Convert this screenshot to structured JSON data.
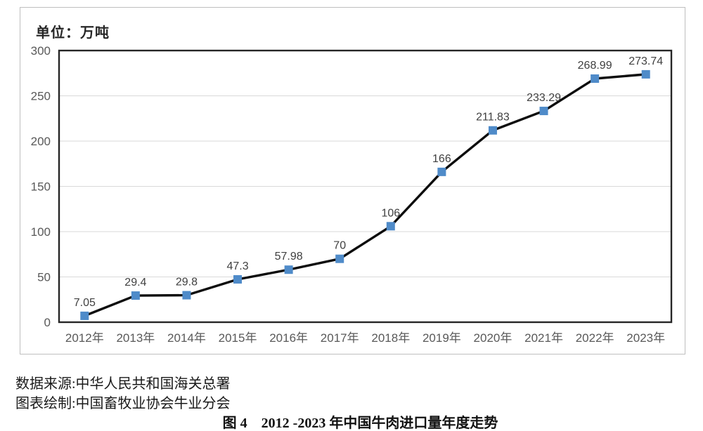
{
  "chart": {
    "unit_label": "单位：万吨",
    "colors": {
      "line": "#0d0d0d",
      "marker": "#4f8bc9",
      "grid": "#d9d9d9",
      "plot_border": "#262626",
      "tick_text": "#595959",
      "value_text": "#404040",
      "frame_border": "#bfbfbf",
      "background": "#ffffff"
    }
  },
  "chart_data": {
    "type": "line",
    "title": "图 4　2012 -2023 年中国牛肉进口量年度走势",
    "unit": "万吨",
    "categories": [
      "2012年",
      "2013年",
      "2014年",
      "2015年",
      "2016年",
      "2017年",
      "2018年",
      "2019年",
      "2020年",
      "2021年",
      "2022年",
      "2023年"
    ],
    "values": [
      7.05,
      29.4,
      29.8,
      47.3,
      57.98,
      70,
      106,
      166,
      211.83,
      233.29,
      268.99,
      273.74
    ],
    "point_labels": [
      "7.05",
      "29.4",
      "29.8",
      "47.3",
      "57.98",
      "70",
      "106",
      "166",
      "211.83",
      "233.29",
      "268.99",
      "273.74"
    ],
    "ylim": [
      0,
      300
    ],
    "yticks": [
      0,
      50,
      100,
      150,
      200,
      250,
      300
    ],
    "grid": true,
    "legend": false,
    "marker_shape": "square"
  },
  "footer": {
    "source_line": "数据来源:中华人民共和国海关总署",
    "credit_line": "图表绘制:中国畜牧业协会牛业分会",
    "caption": "图 4　2012 -2023 年中国牛肉进口量年度走势"
  }
}
